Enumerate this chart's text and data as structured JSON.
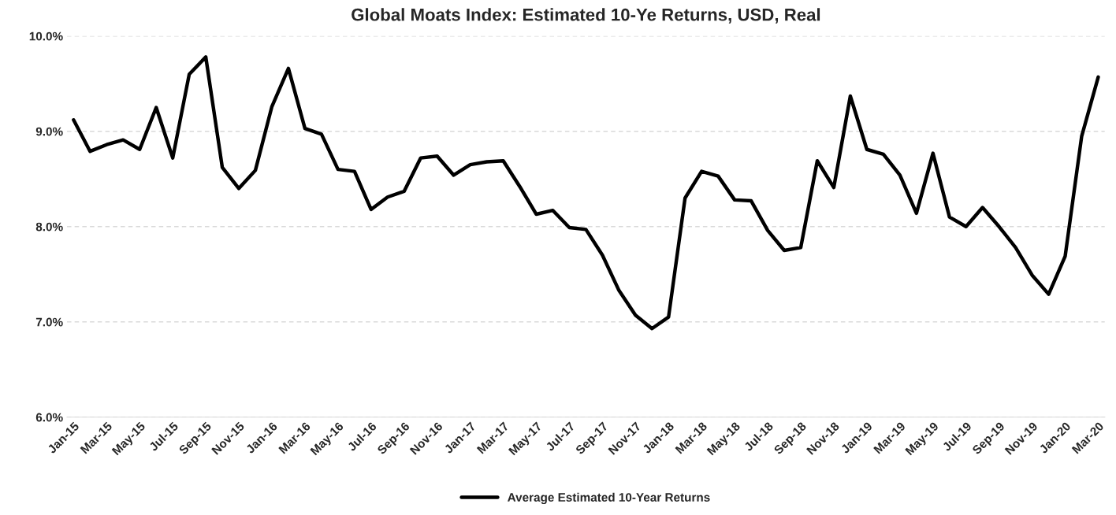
{
  "chart_data": {
    "type": "line",
    "title": "Global Moats Index: Estimated 10-Ye Returns, USD, Real",
    "categories": [
      "Jan-15",
      null,
      "Mar-15",
      null,
      "May-15",
      null,
      "Jul-15",
      null,
      "Sep-15",
      null,
      "Nov-15",
      null,
      "Jan-16",
      null,
      "Mar-16",
      null,
      "May-16",
      null,
      "Jul-16",
      null,
      "Sep-16",
      null,
      "Nov-16",
      null,
      "Jan-17",
      null,
      "Mar-17",
      null,
      "May-17",
      null,
      "Jul-17",
      null,
      "Sep-17",
      null,
      "Nov-17",
      null,
      "Jan-18",
      null,
      "Mar-18",
      null,
      "May-18",
      null,
      "Jul-18",
      null,
      "Sep-18",
      null,
      "Nov-18",
      null,
      "Jan-19",
      null,
      "Mar-19",
      null,
      "May-19",
      null,
      "Jul-19",
      null,
      "Sep-19",
      null,
      "Nov-19",
      null,
      "Jan-20",
      null,
      "Mar-20"
    ],
    "series": [
      {
        "name": "Average Estimated 10-Year Returns",
        "color": "#000000",
        "values": [
          9.12,
          8.79,
          8.86,
          8.91,
          8.81,
          9.25,
          8.72,
          9.6,
          9.78,
          8.62,
          8.4,
          8.59,
          9.26,
          9.66,
          9.03,
          8.97,
          8.6,
          8.58,
          8.18,
          8.31,
          8.37,
          8.72,
          8.74,
          8.54,
          8.65,
          8.68,
          8.69,
          8.42,
          8.13,
          8.17,
          7.99,
          7.97,
          7.7,
          7.33,
          7.07,
          6.93,
          7.05,
          8.3,
          8.58,
          8.53,
          8.28,
          8.27,
          7.96,
          7.75,
          7.78,
          8.69,
          8.41,
          9.37,
          8.81,
          8.76,
          8.54,
          8.14,
          8.77,
          8.1,
          8.0,
          8.2,
          8.0,
          7.78,
          7.49,
          7.29,
          7.69,
          8.95,
          9.57
        ]
      }
    ],
    "ylim": [
      6,
      10
    ],
    "yticks": [
      {
        "value": 6,
        "label": "6.0%"
      },
      {
        "value": 7,
        "label": "7.0%"
      },
      {
        "value": 8,
        "label": "8.0%"
      },
      {
        "value": 9,
        "label": "9.0%"
      },
      {
        "value": 10,
        "label": "10.0%"
      }
    ],
    "grid": "y",
    "legend": "bottom",
    "marker": "none",
    "line_style": "solid"
  }
}
